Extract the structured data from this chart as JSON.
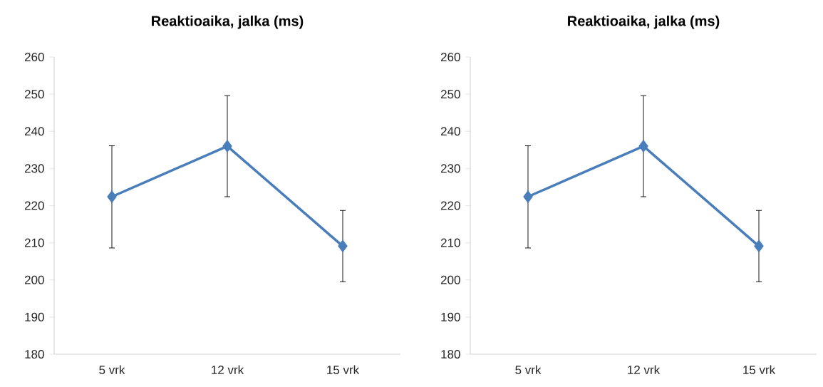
{
  "chart_data": [
    {
      "type": "line",
      "title": "Reaktioaika, jalka (ms)",
      "categories": [
        "5 vrk",
        "12 vrk",
        "15 vrk"
      ],
      "values": [
        222.4,
        236.0,
        209.1
      ],
      "errors": [
        [
          208.6,
          236.1
        ],
        [
          222.4,
          249.6
        ],
        [
          199.5,
          218.7
        ]
      ],
      "color": "#4a7ebb",
      "marker": "diamond",
      "line_style": "solid",
      "ylim": [
        180,
        260
      ],
      "yticks": [
        180,
        190,
        200,
        210,
        220,
        230,
        240,
        250,
        260
      ],
      "grid": false
    },
    {
      "type": "line",
      "title": "Reaktioaika, jalka (ms)",
      "categories": [
        "5 vrk",
        "12 vrk",
        "15 vrk"
      ],
      "values": [
        222.4,
        236.0,
        209.1
      ],
      "errors": [
        [
          208.6,
          236.1
        ],
        [
          222.4,
          249.6
        ],
        [
          199.5,
          218.7
        ]
      ],
      "color": "#4a7ebb",
      "marker": "diamond",
      "line_style": "solid",
      "ylim": [
        180,
        260
      ],
      "yticks": [
        180,
        190,
        200,
        210,
        220,
        230,
        240,
        250,
        260
      ],
      "grid": false
    }
  ]
}
